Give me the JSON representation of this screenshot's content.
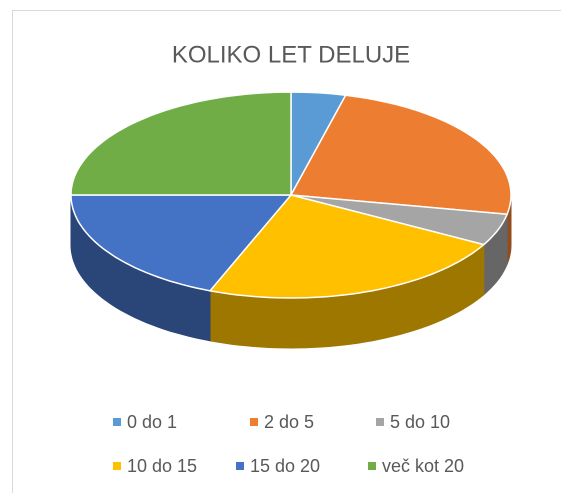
{
  "chart_data": {
    "type": "pie",
    "title": "KOLIKO LET DELUJE",
    "categories": [
      "0 do 1",
      "2 do 5",
      "5 do 10",
      "10 do 15",
      "15 do 20",
      "več kot 20"
    ],
    "values": [
      4,
      24,
      5,
      23,
      19,
      25
    ],
    "colors": [
      "#5b9bd5",
      "#ed7d31",
      "#a5a5a5",
      "#ffc000",
      "#4472c4",
      "#70ad47"
    ],
    "legend": "bottom"
  }
}
